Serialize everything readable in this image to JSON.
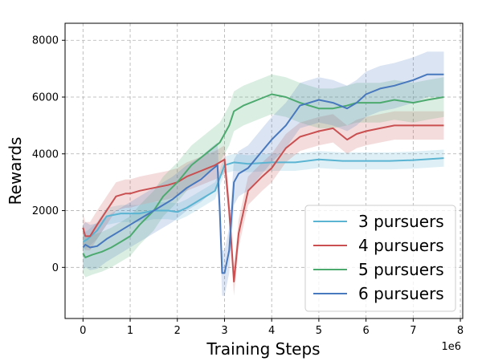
{
  "chart_data": {
    "type": "line",
    "title": "",
    "xlabel": "Training Steps",
    "ylabel": "Rewards",
    "x_scale_label": "1e6",
    "xlim": [
      -0.38,
      8.05
    ],
    "ylim": [
      -1800,
      8600
    ],
    "x_ticks": [
      0,
      1,
      2,
      3,
      4,
      5,
      6,
      7,
      8
    ],
    "y_ticks": [
      0,
      2000,
      4000,
      6000,
      8000
    ],
    "grid": true,
    "legend_position": "bottom-right",
    "series": [
      {
        "name": "3 pursuers",
        "color": "#5ab4d2",
        "x": [
          0,
          0.1,
          0.3,
          0.5,
          0.8,
          1.2,
          1.5,
          1.8,
          2.0,
          2.2,
          2.5,
          2.8,
          3.0,
          3.2,
          3.5,
          4.0,
          4.5,
          5.0,
          5.5,
          6.0,
          6.5,
          7.0,
          7.65
        ],
        "y": [
          900,
          1000,
          1300,
          1800,
          1900,
          1900,
          2000,
          2000,
          1950,
          2100,
          2400,
          2700,
          3600,
          3700,
          3650,
          3700,
          3700,
          3800,
          3750,
          3750,
          3750,
          3780,
          3850
        ],
        "band": 300
      },
      {
        "name": "4 pursuers",
        "color": "#c94f50",
        "x": [
          0,
          0.05,
          0.15,
          0.3,
          0.5,
          0.7,
          0.9,
          1.0,
          1.2,
          1.5,
          1.8,
          2.0,
          2.2,
          2.5,
          2.8,
          3.0,
          3.1,
          3.2,
          3.3,
          3.5,
          3.8,
          4.0,
          4.3,
          4.6,
          5.0,
          5.3,
          5.6,
          5.8,
          6.0,
          6.3,
          6.6,
          7.0,
          7.3,
          7.65
        ],
        "y": [
          1400,
          1100,
          1100,
          1500,
          2000,
          2500,
          2600,
          2600,
          2700,
          2800,
          2900,
          3000,
          3200,
          3400,
          3600,
          3800,
          2000,
          -500,
          1200,
          2700,
          3200,
          3500,
          4200,
          4600,
          4800,
          4900,
          4500,
          4700,
          4800,
          4900,
          5000,
          5000,
          5000,
          5000
        ],
        "band": 500
      },
      {
        "name": "5 pursuers",
        "color": "#4daa6f",
        "x": [
          0,
          0.05,
          0.2,
          0.4,
          0.6,
          0.8,
          1.0,
          1.2,
          1.5,
          1.7,
          2.0,
          2.3,
          2.6,
          2.9,
          3.0,
          3.1,
          3.2,
          3.4,
          3.7,
          4.0,
          4.3,
          4.6,
          5.0,
          5.3,
          5.6,
          5.8,
          6.0,
          6.3,
          6.6,
          7.0,
          7.3,
          7.65
        ],
        "y": [
          500,
          350,
          450,
          550,
          700,
          900,
          1100,
          1500,
          2000,
          2500,
          3000,
          3600,
          4000,
          4400,
          4700,
          5000,
          5500,
          5700,
          5900,
          6100,
          6000,
          5800,
          5600,
          5600,
          5700,
          5800,
          5800,
          5800,
          5900,
          5800,
          5900,
          6000
        ],
        "band": 700
      },
      {
        "name": "6 pursuers",
        "color": "#4878bd",
        "x": [
          0,
          0.05,
          0.15,
          0.3,
          0.5,
          0.8,
          1.0,
          1.3,
          1.6,
          1.9,
          2.2,
          2.5,
          2.7,
          2.85,
          2.9,
          2.95,
          3.0,
          3.1,
          3.2,
          3.3,
          3.5,
          3.8,
          4.0,
          4.3,
          4.6,
          5.0,
          5.3,
          5.6,
          5.8,
          6.0,
          6.3,
          6.6,
          7.0,
          7.3,
          7.65
        ],
        "y": [
          700,
          800,
          700,
          750,
          1000,
          1300,
          1500,
          1800,
          2100,
          2400,
          2800,
          3100,
          3400,
          3600,
          2000,
          -200,
          -200,
          600,
          3000,
          3300,
          3500,
          4100,
          4500,
          5000,
          5700,
          5900,
          5800,
          5600,
          5800,
          6100,
          6300,
          6400,
          6600,
          6800,
          6800
        ],
        "band": 800
      }
    ]
  }
}
